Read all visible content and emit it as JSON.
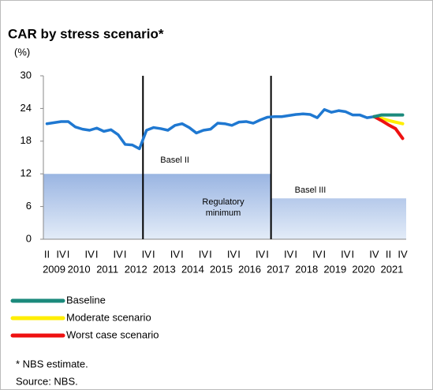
{
  "chart_data": {
    "type": "line",
    "title": "CAR by stress scenario*",
    "y_unit": "(%)",
    "categories": [
      "II",
      null,
      "IV",
      "I",
      null,
      null,
      "IV",
      "I",
      null,
      null,
      "IV",
      "I",
      null,
      null,
      "IV",
      "I",
      null,
      null,
      "IV",
      "I",
      null,
      null,
      "IV",
      "I",
      null,
      null,
      "IV",
      "I",
      null,
      null,
      "IV",
      "I",
      null,
      null,
      "IV",
      "I",
      null,
      null,
      "IV",
      "I",
      null,
      null,
      "IV",
      "I",
      null,
      null,
      "IV",
      null,
      "II",
      null,
      "IV"
    ],
    "groups": [
      {
        "label": "2009",
        "size": 3
      },
      {
        "label": "2010",
        "size": 4
      },
      {
        "label": "2011",
        "size": 4
      },
      {
        "label": "2012",
        "size": 4
      },
      {
        "label": "2013",
        "size": 4
      },
      {
        "label": "2014",
        "size": 4
      },
      {
        "label": "2015",
        "size": 4
      },
      {
        "label": "2016",
        "size": 4
      },
      {
        "label": "2017",
        "size": 4
      },
      {
        "label": "2018",
        "size": 4
      },
      {
        "label": "2019",
        "size": 4
      },
      {
        "label": "2020",
        "size": 4
      },
      {
        "label": "2021",
        "size": 4
      }
    ],
    "series": [
      {
        "color": "#1f78d1",
        "values": [
          21.2,
          21.4,
          21.6,
          21.6,
          20.6,
          20.2,
          20.0,
          20.4,
          19.8,
          20.1,
          19.2,
          17.4,
          17.3,
          16.6,
          20.0,
          20.5,
          20.3,
          20.0,
          20.9,
          21.2,
          20.5,
          19.5,
          20.0,
          20.2,
          21.3,
          21.2,
          20.9,
          21.5,
          21.6,
          21.3,
          21.9,
          22.4,
          22.5,
          22.5,
          22.7,
          22.9,
          23.0,
          22.9,
          22.3,
          23.8,
          23.3,
          23.6,
          23.4,
          22.8,
          22.8,
          22.3,
          22.5,
          null,
          null,
          null,
          null
        ]
      },
      {
        "name": "Baseline",
        "color": "#1b8a7c",
        "values": [
          null,
          null,
          null,
          null,
          null,
          null,
          null,
          null,
          null,
          null,
          null,
          null,
          null,
          null,
          null,
          null,
          null,
          null,
          null,
          null,
          null,
          null,
          null,
          null,
          null,
          null,
          null,
          null,
          null,
          null,
          null,
          null,
          null,
          null,
          null,
          null,
          null,
          null,
          null,
          null,
          null,
          null,
          null,
          null,
          null,
          null,
          22.5,
          22.8,
          22.8,
          22.8,
          22.8
        ]
      },
      {
        "name": "Moderate scenario",
        "color": "#ffee00",
        "values": [
          null,
          null,
          null,
          null,
          null,
          null,
          null,
          null,
          null,
          null,
          null,
          null,
          null,
          null,
          null,
          null,
          null,
          null,
          null,
          null,
          null,
          null,
          null,
          null,
          null,
          null,
          null,
          null,
          null,
          null,
          null,
          null,
          null,
          null,
          null,
          null,
          null,
          null,
          null,
          null,
          null,
          null,
          null,
          null,
          null,
          null,
          22.5,
          22.2,
          21.8,
          21.5,
          21.2
        ]
      },
      {
        "name": "Worst case scenario",
        "color": "#ee1111",
        "values": [
          null,
          null,
          null,
          null,
          null,
          null,
          null,
          null,
          null,
          null,
          null,
          null,
          null,
          null,
          null,
          null,
          null,
          null,
          null,
          null,
          null,
          null,
          null,
          null,
          null,
          null,
          null,
          null,
          null,
          null,
          null,
          null,
          null,
          null,
          null,
          null,
          null,
          null,
          null,
          null,
          null,
          null,
          null,
          null,
          null,
          null,
          22.5,
          21.8,
          21.0,
          20.3,
          18.5
        ]
      }
    ],
    "regulatory_minimum": {
      "lines": [
        "Regulatory",
        "minimum"
      ],
      "values": [
        12,
        12,
        12,
        12,
        12,
        12,
        12,
        12,
        12,
        12,
        12,
        12,
        12,
        12,
        12,
        12,
        12,
        12,
        12,
        12,
        12,
        12,
        12,
        12,
        12,
        12,
        12,
        12,
        12,
        12,
        12,
        12,
        7.5,
        7.5,
        7.5,
        7.5,
        7.5,
        7.5,
        7.5,
        7.5,
        7.5,
        7.5,
        7.5,
        7.5,
        7.5,
        7.5,
        7.5,
        7.5,
        7.5,
        7.5,
        7.5
      ]
    },
    "periods": [
      {
        "label": "Basel II",
        "category": 14
      },
      {
        "label": "Basel III",
        "category": 32
      }
    ],
    "ylim": [
      0,
      30
    ],
    "yticks": [
      0,
      6,
      12,
      18,
      24,
      30
    ],
    "notes": [
      "* NBS estimate.",
      "Source: NBS."
    ]
  }
}
